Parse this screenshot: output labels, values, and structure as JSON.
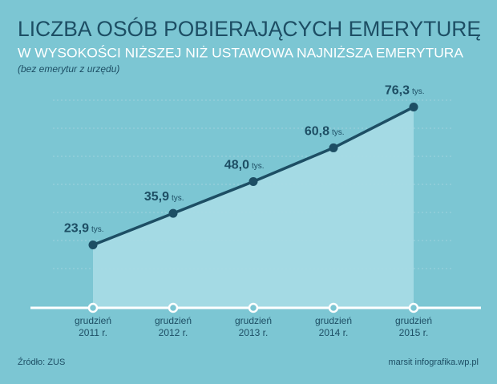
{
  "chart_data": {
    "type": "line",
    "title": "LICZBA OSÓB POBIERAJĄCYCH EMERYTURĘ",
    "subtitle": "W WYSOKOŚCI NIŻSZEJ NIŻ USTAWOWA NAJNIŻSZA EMERYTURA",
    "note": "(bez emerytur z urzędu)",
    "source": "Źródło: ZUS",
    "credit": "marsit infografika.wp.pl",
    "unit_label": "tys.",
    "categories": [
      [
        "grudzień",
        "2011 r."
      ],
      [
        "grudzień",
        "2012 r."
      ],
      [
        "grudzień",
        "2013 r."
      ],
      [
        "grudzień",
        "2014 r."
      ],
      [
        "grudzień",
        "2015 r."
      ]
    ],
    "values": [
      23.9,
      35.9,
      48.0,
      60.8,
      76.3
    ],
    "value_labels": [
      "23,9",
      "35,9",
      "48,0",
      "60,8",
      "76,3"
    ],
    "color": "#1d4e64",
    "area_color": "#a9dce5",
    "ylim": [
      0,
      80
    ]
  }
}
